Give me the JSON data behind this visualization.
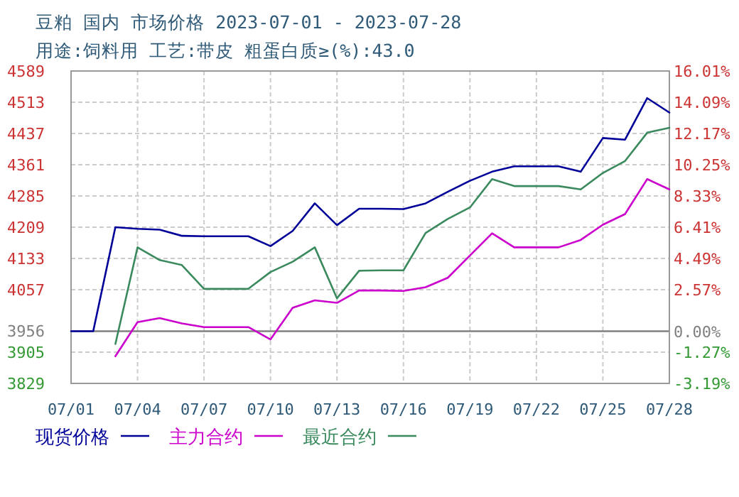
{
  "chart_data": {
    "type": "line",
    "title": "豆粕 国内 市场价格 2023-07-01 - 2023-07-28",
    "subtitle": "用途:饲料用 工艺:带皮 粗蛋白质≥(%):43.0",
    "x": [
      "--07-01",
      "--07-02",
      "--07-03",
      "--07-04",
      "--07-05",
      "--07-06",
      "--07-07",
      "--07-08",
      "--07-09",
      "--07-10",
      "--07-11",
      "--07-12",
      "--07-13",
      "--07-14",
      "--07-15",
      "--07-16",
      "--07-17",
      "--07-18",
      "--07-19",
      "--07-20",
      "--07-21",
      "--07-22",
      "--07-23",
      "--07-24",
      "--07-25",
      "--07-26",
      "--07-27",
      "--07-28"
    ],
    "series": [
      {
        "name": "现货价格",
        "color": "#000099",
        "values": [
          3956,
          3956,
          4209,
          4205,
          4203,
          4188,
          4187,
          4187,
          4187,
          4163,
          4200,
          4267,
          4214,
          4254,
          4254,
          4253,
          4267,
          4295,
          4322,
          4344,
          4357,
          4357,
          4357,
          4344,
          4426,
          4422,
          4523,
          4488
        ]
      },
      {
        "name": "主力合约",
        "color": "#cc00cc",
        "values": [
          null,
          null,
          3895,
          3978,
          3988,
          3975,
          3966,
          3966,
          3966,
          3936,
          4013,
          4031,
          4025,
          4055,
          4055,
          4054,
          4063,
          4086,
          4140,
          4194,
          4160,
          4160,
          4160,
          4178,
          4215,
          4241,
          4326,
          4301
        ]
      },
      {
        "name": "最近合约",
        "color": "#3a8a5e",
        "values": [
          null,
          null,
          3925,
          4160,
          4129,
          4117,
          4059,
          4059,
          4059,
          4100,
          4125,
          4160,
          4036,
          4103,
          4104,
          4104,
          4195,
          4229,
          4257,
          4326,
          4309,
          4309,
          4309,
          4301,
          4341,
          4370,
          4439,
          4451
        ]
      }
    ],
    "xlim": [
      "--07-01",
      "--07-28"
    ],
    "xticks": [
      {
        "value": "--07-01",
        "label": "07/01"
      },
      {
        "value": "--07-04",
        "label": "07/04"
      },
      {
        "value": "--07-07",
        "label": "07/07"
      },
      {
        "value": "--07-10",
        "label": "07/10"
      },
      {
        "value": "--07-13",
        "label": "07/13"
      },
      {
        "value": "--07-16",
        "label": "07/16"
      },
      {
        "value": "--07-19",
        "label": "07/19"
      },
      {
        "value": "--07-22",
        "label": "07/22"
      },
      {
        "value": "--07-25",
        "label": "07/25"
      },
      {
        "value": "--07-28",
        "label": "07/28"
      }
    ],
    "ylim": [
      3829,
      4589
    ],
    "yticks": [
      4589,
      4513,
      4437,
      4361,
      4285,
      4209,
      4133,
      4057,
      3956,
      3905,
      3829
    ],
    "y2lim": [
      -3.19,
      16.01
    ],
    "y2ticks": [
      {
        "value": 16.01,
        "label": "16.01%"
      },
      {
        "value": 14.09,
        "label": "14.09%"
      },
      {
        "value": 12.17,
        "label": "12.17%"
      },
      {
        "value": 10.25,
        "label": "10.25%"
      },
      {
        "value": 8.33,
        "label": "8.33%"
      },
      {
        "value": 6.41,
        "label": "6.41%"
      },
      {
        "value": 4.49,
        "label": "4.49%"
      },
      {
        "value": 2.57,
        "label": "2.57%"
      },
      {
        "value": 0,
        "label": "0.00%"
      },
      {
        "value": -1.27,
        "label": "-1.27%"
      },
      {
        "value": -3.19,
        "label": "-3.19%"
      }
    ],
    "ref_lines": [
      {
        "axis": "y",
        "value": 3956,
        "color": "#808080"
      }
    ],
    "grid": true,
    "legend": "bottom"
  }
}
